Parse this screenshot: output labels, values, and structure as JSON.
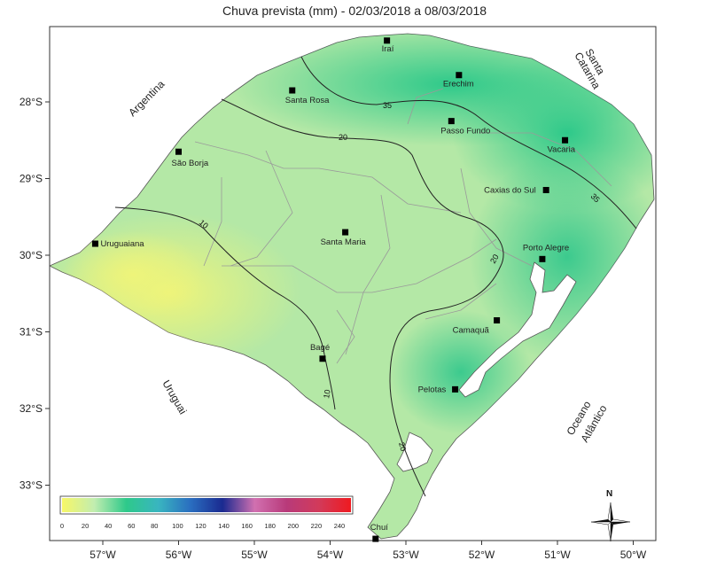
{
  "title": "Chuva prevista (mm) - 02/03/2018 a 08/03/2018",
  "axes": {
    "lat_labels": [
      "28°S",
      "29°S",
      "30°S",
      "31°S",
      "32°S",
      "33°S"
    ],
    "lon_labels": [
      "57°W",
      "56°W",
      "55°W",
      "54°W",
      "53°W",
      "52°W",
      "51°W",
      "50°W"
    ]
  },
  "regions": {
    "argentina": "Argentina",
    "uruguai": "Uruguai",
    "santa": "Santa",
    "catarina": "Catarina",
    "oceano": "Oceano",
    "atlantico": "Atlântico"
  },
  "cities": [
    {
      "name": "Iraí",
      "lon": -53.25,
      "lat": -27.2
    },
    {
      "name": "Erechim",
      "lon": -52.3,
      "lat": -27.65
    },
    {
      "name": "Santa Rosa",
      "lon": -54.5,
      "lat": -27.85
    },
    {
      "name": "Passo Fundo",
      "lon": -52.4,
      "lat": -28.25
    },
    {
      "name": "Vacaria",
      "lon": -50.9,
      "lat": -28.5
    },
    {
      "name": "São Borja",
      "lon": -56.0,
      "lat": -28.65
    },
    {
      "name": "Caxias do Sul",
      "lon": -51.15,
      "lat": -29.15
    },
    {
      "name": "Santa Maria",
      "lon": -53.8,
      "lat": -29.7
    },
    {
      "name": "Uruguaiana",
      "lon": -57.1,
      "lat": -29.85
    },
    {
      "name": "Porto Alegre",
      "lon": -51.2,
      "lat": -30.05
    },
    {
      "name": "Camaquã",
      "lon": -51.8,
      "lat": -30.85
    },
    {
      "name": "Bagé",
      "lon": -54.1,
      "lat": -31.35
    },
    {
      "name": "Pelotas",
      "lon": -52.35,
      "lat": -31.75
    },
    {
      "name": "Chuí",
      "lon": -53.4,
      "lat": -33.7
    }
  ],
  "isolines": [
    {
      "value": "35",
      "label": "35"
    },
    {
      "value": "20",
      "label": "20"
    },
    {
      "value": "10",
      "label": "10"
    }
  ],
  "legend": {
    "ticks": [
      "0",
      "20",
      "40",
      "60",
      "80",
      "100",
      "120",
      "140",
      "160",
      "180",
      "200",
      "220",
      "240"
    ],
    "colors": [
      "#f7f767",
      "#c2edb0",
      "#2ec98a",
      "#39b5c0",
      "#2a6ec0",
      "#1a2a90",
      "#d170b0",
      "#b83a7a",
      "#d23a5a",
      "#ef1a20"
    ]
  },
  "north_label": "N"
}
